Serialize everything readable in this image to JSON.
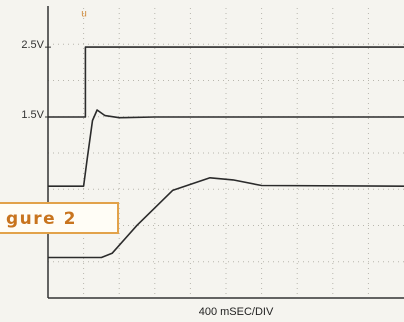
{
  "chart_data": {
    "type": "line",
    "xlim": [
      0,
      10
    ],
    "ylim": [
      -1.09,
      3.06
    ],
    "yticks": [
      {
        "value": 2.5,
        "label": "2.5V"
      },
      {
        "value": 1.5,
        "label": "1.5V"
      }
    ],
    "grid": true,
    "x_label": "400 mSEC/DIV",
    "annotation": "gure 2",
    "marker_label": "u",
    "series": [
      {
        "color": "#2b2b2b",
        "x": [
          0,
          1.05,
          1.05,
          10
        ],
        "values": [
          1.5,
          1.5,
          2.5,
          2.5
        ]
      },
      {
        "color": "#2b2b2b",
        "x": [
          0,
          1.0,
          1.1,
          1.25,
          1.38,
          1.6,
          2.0,
          3,
          5,
          10
        ],
        "values": [
          0.51,
          0.51,
          0.9,
          1.45,
          1.6,
          1.52,
          1.49,
          1.5,
          1.5,
          1.5
        ]
      },
      {
        "color": "#2b2b2b",
        "x": [
          0,
          1.5,
          1.8,
          2.5,
          3.5,
          4.55,
          5.2,
          6,
          10
        ],
        "values": [
          -0.51,
          -0.51,
          -0.45,
          -0.05,
          0.45,
          0.63,
          0.6,
          0.52,
          0.51
        ]
      }
    ]
  }
}
